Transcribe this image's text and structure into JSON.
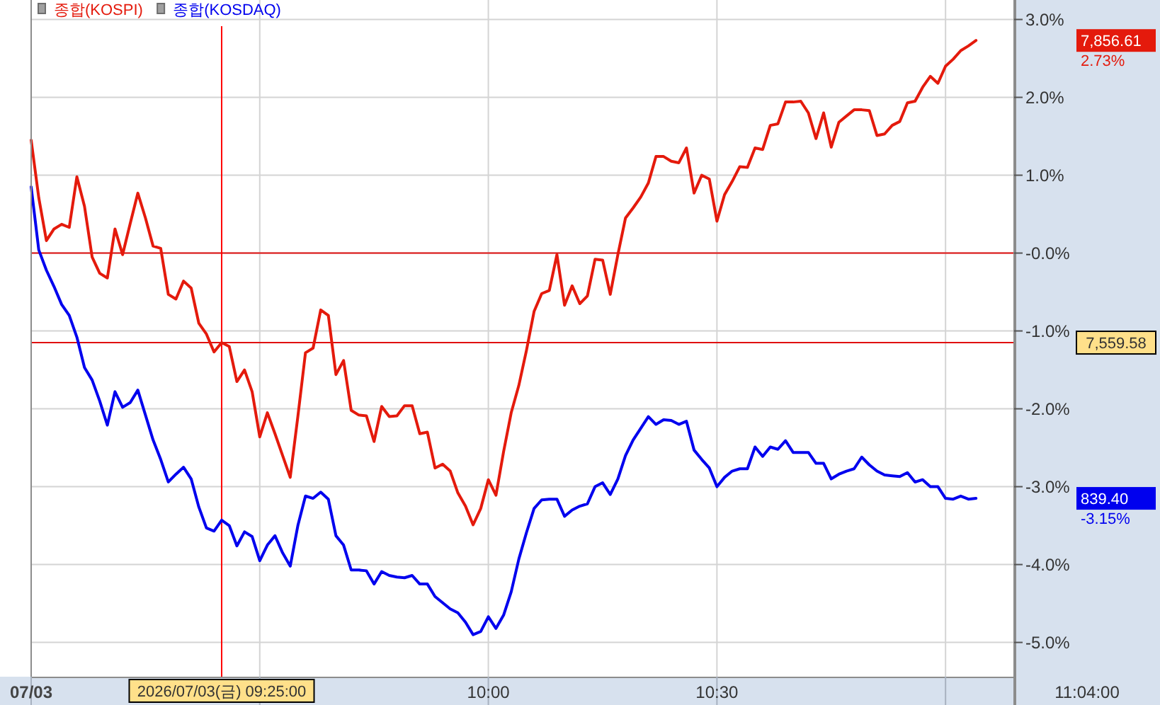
{
  "chart_data": {
    "type": "line",
    "legend": "top left",
    "grid": true,
    "xlim": [
      "2026-07-03T09:00",
      "2026-07-03T11:09"
    ],
    "xticks": [
      {
        "value": "2026-07-03T09:00",
        "label": "07/03"
      },
      {
        "value": "2026-07-03T09:30",
        "label": null
      },
      {
        "value": "2026-07-03T10:00",
        "label": "10:00"
      },
      {
        "value": "2026-07-03T10:30",
        "label": "10:30"
      },
      {
        "value": "2026-07-03T11:00",
        "label": null
      }
    ],
    "ylim": [
      -5.44,
      3.25
    ],
    "yticks": [
      {
        "value": 3,
        "label": "3.0%"
      },
      {
        "value": 2,
        "label": "2.0%"
      },
      {
        "value": 1,
        "label": "1.0%"
      },
      {
        "value": 0,
        "label": "-0.0%"
      },
      {
        "value": -1,
        "label": "-1.0%"
      },
      {
        "value": -2,
        "label": "-2.0%"
      },
      {
        "value": -3,
        "label": "-3.0%"
      },
      {
        "value": -4,
        "label": "-4.0%"
      },
      {
        "value": -5,
        "label": "-5.0%"
      }
    ],
    "x": [
      "2026-07-03T09:00",
      "2026-07-03T09:01",
      "2026-07-03T09:02",
      "2026-07-03T09:03",
      "2026-07-03T09:04",
      "2026-07-03T09:05",
      "2026-07-03T09:06",
      "2026-07-03T09:07",
      "2026-07-03T09:08",
      "2026-07-03T09:09",
      "2026-07-03T09:10",
      "2026-07-03T09:11",
      "2026-07-03T09:12",
      "2026-07-03T09:13",
      "2026-07-03T09:14",
      "2026-07-03T09:15",
      "2026-07-03T09:16",
      "2026-07-03T09:17",
      "2026-07-03T09:18",
      "2026-07-03T09:19",
      "2026-07-03T09:20",
      "2026-07-03T09:21",
      "2026-07-03T09:22",
      "2026-07-03T09:23",
      "2026-07-03T09:24",
      "2026-07-03T09:25",
      "2026-07-03T09:26",
      "2026-07-03T09:27",
      "2026-07-03T09:28",
      "2026-07-03T09:29",
      "2026-07-03T09:30",
      "2026-07-03T09:31",
      "2026-07-03T09:32",
      "2026-07-03T09:33",
      "2026-07-03T09:34",
      "2026-07-03T09:35",
      "2026-07-03T09:36",
      "2026-07-03T09:37",
      "2026-07-03T09:38",
      "2026-07-03T09:39",
      "2026-07-03T09:40",
      "2026-07-03T09:41",
      "2026-07-03T09:42",
      "2026-07-03T09:43",
      "2026-07-03T09:44",
      "2026-07-03T09:45",
      "2026-07-03T09:46",
      "2026-07-03T09:47",
      "2026-07-03T09:48",
      "2026-07-03T09:49",
      "2026-07-03T09:50",
      "2026-07-03T09:51",
      "2026-07-03T09:52",
      "2026-07-03T09:53",
      "2026-07-03T09:54",
      "2026-07-03T09:55",
      "2026-07-03T09:56",
      "2026-07-03T09:57",
      "2026-07-03T09:58",
      "2026-07-03T09:59",
      "2026-07-03T10:00",
      "2026-07-03T10:01",
      "2026-07-03T10:02",
      "2026-07-03T10:03",
      "2026-07-03T10:04",
      "2026-07-03T10:05",
      "2026-07-03T10:06",
      "2026-07-03T10:07",
      "2026-07-03T10:08",
      "2026-07-03T10:09",
      "2026-07-03T10:10",
      "2026-07-03T10:11",
      "2026-07-03T10:12",
      "2026-07-03T10:13",
      "2026-07-03T10:14",
      "2026-07-03T10:15",
      "2026-07-03T10:16",
      "2026-07-03T10:17",
      "2026-07-03T10:18",
      "2026-07-03T10:19",
      "2026-07-03T10:20",
      "2026-07-03T10:21",
      "2026-07-03T10:22",
      "2026-07-03T10:23",
      "2026-07-03T10:24",
      "2026-07-03T10:25",
      "2026-07-03T10:26",
      "2026-07-03T10:27",
      "2026-07-03T10:28",
      "2026-07-03T10:29",
      "2026-07-03T10:30",
      "2026-07-03T10:31",
      "2026-07-03T10:32",
      "2026-07-03T10:33",
      "2026-07-03T10:34",
      "2026-07-03T10:35",
      "2026-07-03T10:36",
      "2026-07-03T10:37",
      "2026-07-03T10:38",
      "2026-07-03T10:39",
      "2026-07-03T10:40",
      "2026-07-03T10:41",
      "2026-07-03T10:42",
      "2026-07-03T10:43",
      "2026-07-03T10:44",
      "2026-07-03T10:45",
      "2026-07-03T10:46",
      "2026-07-03T10:47",
      "2026-07-03T10:48",
      "2026-07-03T10:49",
      "2026-07-03T10:50",
      "2026-07-03T10:51",
      "2026-07-03T10:52",
      "2026-07-03T10:53",
      "2026-07-03T10:54",
      "2026-07-03T10:55",
      "2026-07-03T10:56",
      "2026-07-03T10:57",
      "2026-07-03T10:58",
      "2026-07-03T10:59",
      "2026-07-03T11:00",
      "2026-07-03T11:01",
      "2026-07-03T11:02",
      "2026-07-03T11:03",
      "2026-07-03T11:04"
    ],
    "series": [
      {
        "name": "종합(KOSPI)",
        "color": "#e41a0c",
        "values": [
          1.45,
          0.71,
          0.16,
          0.31,
          0.37,
          0.33,
          0.98,
          0.6,
          -0.05,
          -0.26,
          -0.32,
          0.31,
          -0.02,
          0.38,
          0.77,
          0.45,
          0.09,
          0.06,
          -0.53,
          -0.59,
          -0.36,
          -0.45,
          -0.9,
          -1.04,
          -1.27,
          -1.15,
          -1.2,
          -1.65,
          -1.5,
          -1.78,
          -2.36,
          -2.05,
          -2.32,
          -2.6,
          -2.88,
          -2.1,
          -1.28,
          -1.22,
          -0.73,
          -0.8,
          -1.56,
          -1.38,
          -2.02,
          -2.08,
          -2.09,
          -2.42,
          -1.97,
          -2.1,
          -2.09,
          -1.96,
          -1.96,
          -2.32,
          -2.3,
          -2.76,
          -2.71,
          -2.8,
          -3.08,
          -3.25,
          -3.49,
          -3.28,
          -2.91,
          -3.11,
          -2.55,
          -2.05,
          -1.7,
          -1.25,
          -0.75,
          -0.52,
          -0.48,
          -0.02,
          -0.67,
          -0.42,
          -0.65,
          -0.55,
          -0.08,
          -0.09,
          -0.53,
          -0.02,
          0.45,
          0.58,
          0.72,
          0.9,
          1.24,
          1.24,
          1.18,
          1.16,
          1.35,
          0.77,
          1.0,
          0.95,
          0.41,
          0.75,
          0.92,
          1.11,
          1.1,
          1.35,
          1.33,
          1.64,
          1.66,
          1.94,
          1.94,
          1.95,
          1.8,
          1.47,
          1.8,
          1.36,
          1.68,
          1.76,
          1.84,
          1.84,
          1.83,
          1.51,
          1.53,
          1.64,
          1.69,
          1.93,
          1.95,
          2.13,
          2.27,
          2.18,
          2.4,
          2.49,
          2.6,
          2.66,
          2.73
        ]
      },
      {
        "name": "종합(KOSDAQ)",
        "color": "#0000ee",
        "values": [
          0.85,
          0.04,
          -0.22,
          -0.43,
          -0.66,
          -0.8,
          -1.08,
          -1.47,
          -1.63,
          -1.9,
          -2.21,
          -1.78,
          -1.98,
          -1.92,
          -1.76,
          -2.08,
          -2.4,
          -2.65,
          -2.94,
          -2.84,
          -2.75,
          -2.9,
          -3.26,
          -3.53,
          -3.57,
          -3.43,
          -3.5,
          -3.76,
          -3.58,
          -3.64,
          -3.95,
          -3.75,
          -3.63,
          -3.85,
          -4.02,
          -3.5,
          -3.12,
          -3.15,
          -3.07,
          -3.16,
          -3.63,
          -3.75,
          -4.07,
          -4.07,
          -4.08,
          -4.25,
          -4.09,
          -4.14,
          -4.16,
          -4.17,
          -4.14,
          -4.25,
          -4.25,
          -4.41,
          -4.49,
          -4.57,
          -4.62,
          -4.74,
          -4.9,
          -4.86,
          -4.67,
          -4.82,
          -4.65,
          -4.35,
          -3.93,
          -3.59,
          -3.28,
          -3.17,
          -3.16,
          -3.16,
          -3.38,
          -3.3,
          -3.25,
          -3.22,
          -3.0,
          -2.95,
          -3.1,
          -2.9,
          -2.6,
          -2.4,
          -2.25,
          -2.1,
          -2.2,
          -2.14,
          -2.15,
          -2.2,
          -2.16,
          -2.53,
          -2.65,
          -2.76,
          -3.0,
          -2.88,
          -2.8,
          -2.77,
          -2.77,
          -2.49,
          -2.61,
          -2.49,
          -2.52,
          -2.41,
          -2.56,
          -2.56,
          -2.56,
          -2.7,
          -2.7,
          -2.9,
          -2.84,
          -2.8,
          -2.77,
          -2.62,
          -2.72,
          -2.8,
          -2.85,
          -2.86,
          -2.87,
          -2.82,
          -2.94,
          -2.91,
          -3.0,
          -3.0,
          -3.15,
          -3.16,
          -3.12,
          -3.16,
          -3.15
        ]
      }
    ],
    "ref_lines": [
      {
        "axis": "y",
        "value": 0,
        "color": "#e01010"
      },
      {
        "axis": "x",
        "value": "2026-07-03T09:25",
        "color": "#ff0000"
      },
      {
        "axis": "y",
        "value": -1.15,
        "color": "#e01010"
      }
    ],
    "annotations": [
      "7,856.61",
      "2.73%",
      "839.40",
      "-3.15%",
      "7,559.58",
      "2026/07/03(금) 09:25:00",
      "11:04:00"
    ]
  }
}
